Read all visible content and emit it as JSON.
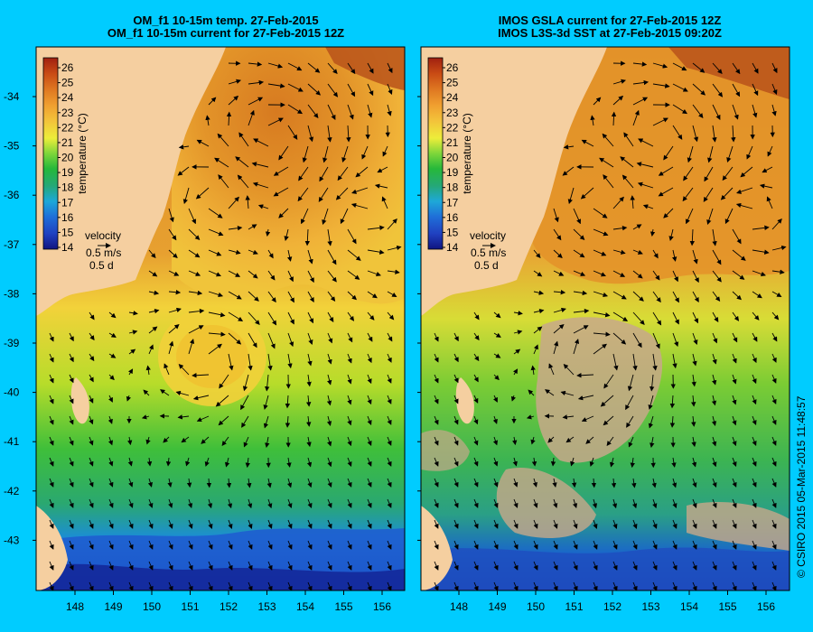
{
  "left_panel": {
    "title_line1": "OM_f1 10-15m temp. 27-Feb-2015",
    "title_line2": "OM_f1 10-15m current for 27-Feb-2015 12Z"
  },
  "right_panel": {
    "title_line1": "IMOS GSLA current for 27-Feb-2015 12Z",
    "title_line2": "IMOS L3S-3d SST at 27-Feb-2015 09:20Z"
  },
  "colorbar": {
    "label": "temperature (°C)",
    "ticks": [
      "26",
      "25",
      "24",
      "23",
      "22",
      "21",
      "20",
      "19",
      "18",
      "17",
      "16",
      "15",
      "14"
    ]
  },
  "velocity": {
    "label": "velocity",
    "speed": "0.5 m/s",
    "time": "0.5 d"
  },
  "axes": {
    "lat_ticks": [
      "-34",
      "-35",
      "-36",
      "-37",
      "-38",
      "-39",
      "-40",
      "-41",
      "-42",
      "-43"
    ],
    "lon_ticks": [
      "148",
      "149",
      "150",
      "151",
      "152",
      "153",
      "154",
      "155",
      "156"
    ]
  },
  "credit": "© CSIRO 2015   05-Mar-2015 11:48:57",
  "colors": {
    "background": "#00ccff",
    "land": "#f5cfa0",
    "no_data": "#c8a88a"
  }
}
